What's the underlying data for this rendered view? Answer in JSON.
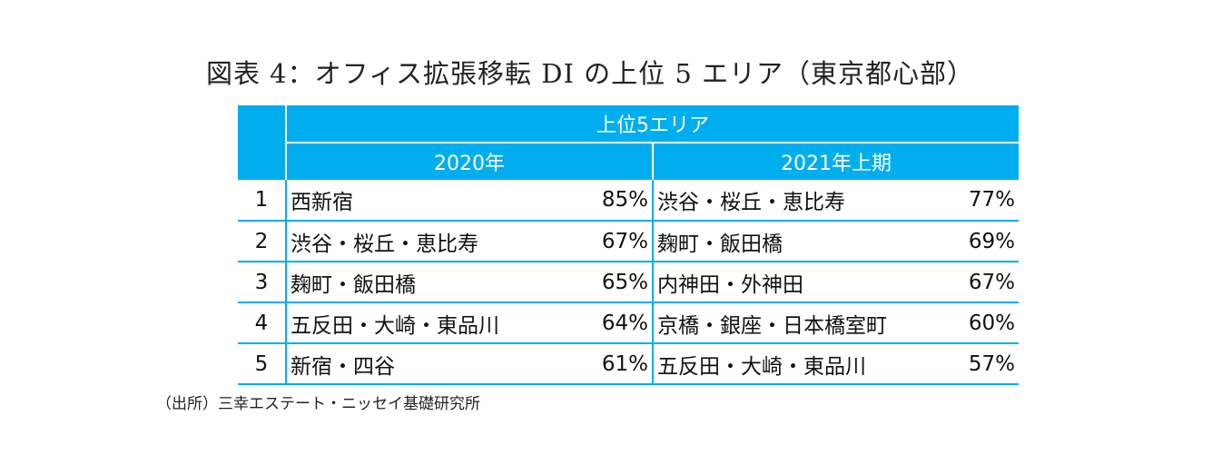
{
  "title": "図表 4：オフィス拡張移転 DI の上位 5 エリア（東京都心部）",
  "table": {
    "group_header": "上位5エリア",
    "col_2020": "2020年",
    "col_2021": "2021年上期",
    "rows": [
      {
        "rank": "1",
        "area_2020": "西新宿",
        "pct_2020": "85%",
        "area_2021": "渋谷・桜丘・恵比寿",
        "pct_2021": "77%"
      },
      {
        "rank": "2",
        "area_2020": "渋谷・桜丘・恵比寿",
        "pct_2020": "67%",
        "area_2021": "麹町・飯田橋",
        "pct_2021": "69%"
      },
      {
        "rank": "3",
        "area_2020": "麹町・飯田橋",
        "pct_2020": "65%",
        "area_2021": "内神田・外神田",
        "pct_2021": "67%"
      },
      {
        "rank": "4",
        "area_2020": "五反田・大崎・東品川",
        "pct_2020": "64%",
        "area_2021": "京橋・銀座・日本橋室町",
        "pct_2021": "60%"
      },
      {
        "rank": "5",
        "area_2020": "新宿・四谷",
        "pct_2020": "61%",
        "area_2021": "五反田・大崎・東品川",
        "pct_2021": "57%"
      }
    ]
  },
  "source": "（出所）三幸エステート・ニッセイ基礎研究所",
  "colors": {
    "header_bg": "#00aeef",
    "header_text": "#ffffff",
    "border": "#00aeef"
  }
}
